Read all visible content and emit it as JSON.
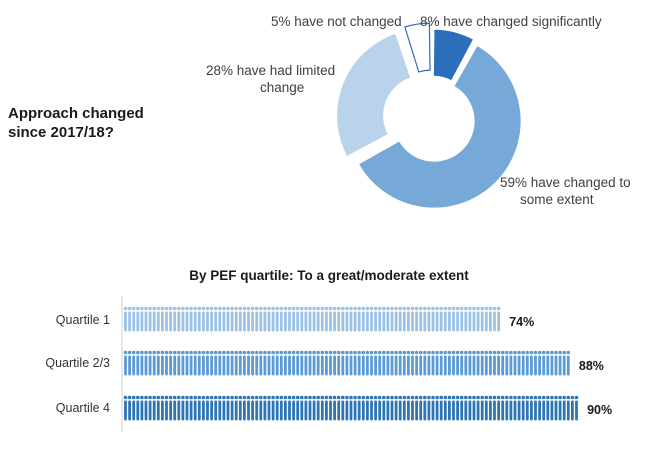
{
  "question": [
    "Approach changed",
    "since 2017/18?"
  ],
  "chart_data": [
    {
      "type": "pie",
      "slices": [
        {
          "label": [
            "8% have changed significantly"
          ],
          "value": 8,
          "color": "#2b6fba",
          "exploded": false
        },
        {
          "label": [
            "59% have changed to",
            "some extent"
          ],
          "value": 59,
          "color": "#77a9d8",
          "exploded": false
        },
        {
          "label": [
            "28% have had limited",
            "change"
          ],
          "value": 28,
          "color": "#b9d3ea",
          "exploded": true
        },
        {
          "label": [
            "5% have not changed"
          ],
          "value": 5,
          "color": "#ffffff",
          "exploded": true
        }
      ]
    },
    {
      "type": "bar",
      "title": "By PEF quartile: To a great/moderate extent",
      "categories": [
        "Quartile 1",
        "Quartile 2/3",
        "Quartile 4"
      ],
      "values": [
        74,
        88,
        90
      ],
      "value_labels": [
        "74%",
        "88%",
        "90%"
      ],
      "colors": [
        "#9cc3e6",
        "#5b9bd5",
        "#2e75b6"
      ],
      "xlim": [
        0,
        100
      ]
    }
  ]
}
